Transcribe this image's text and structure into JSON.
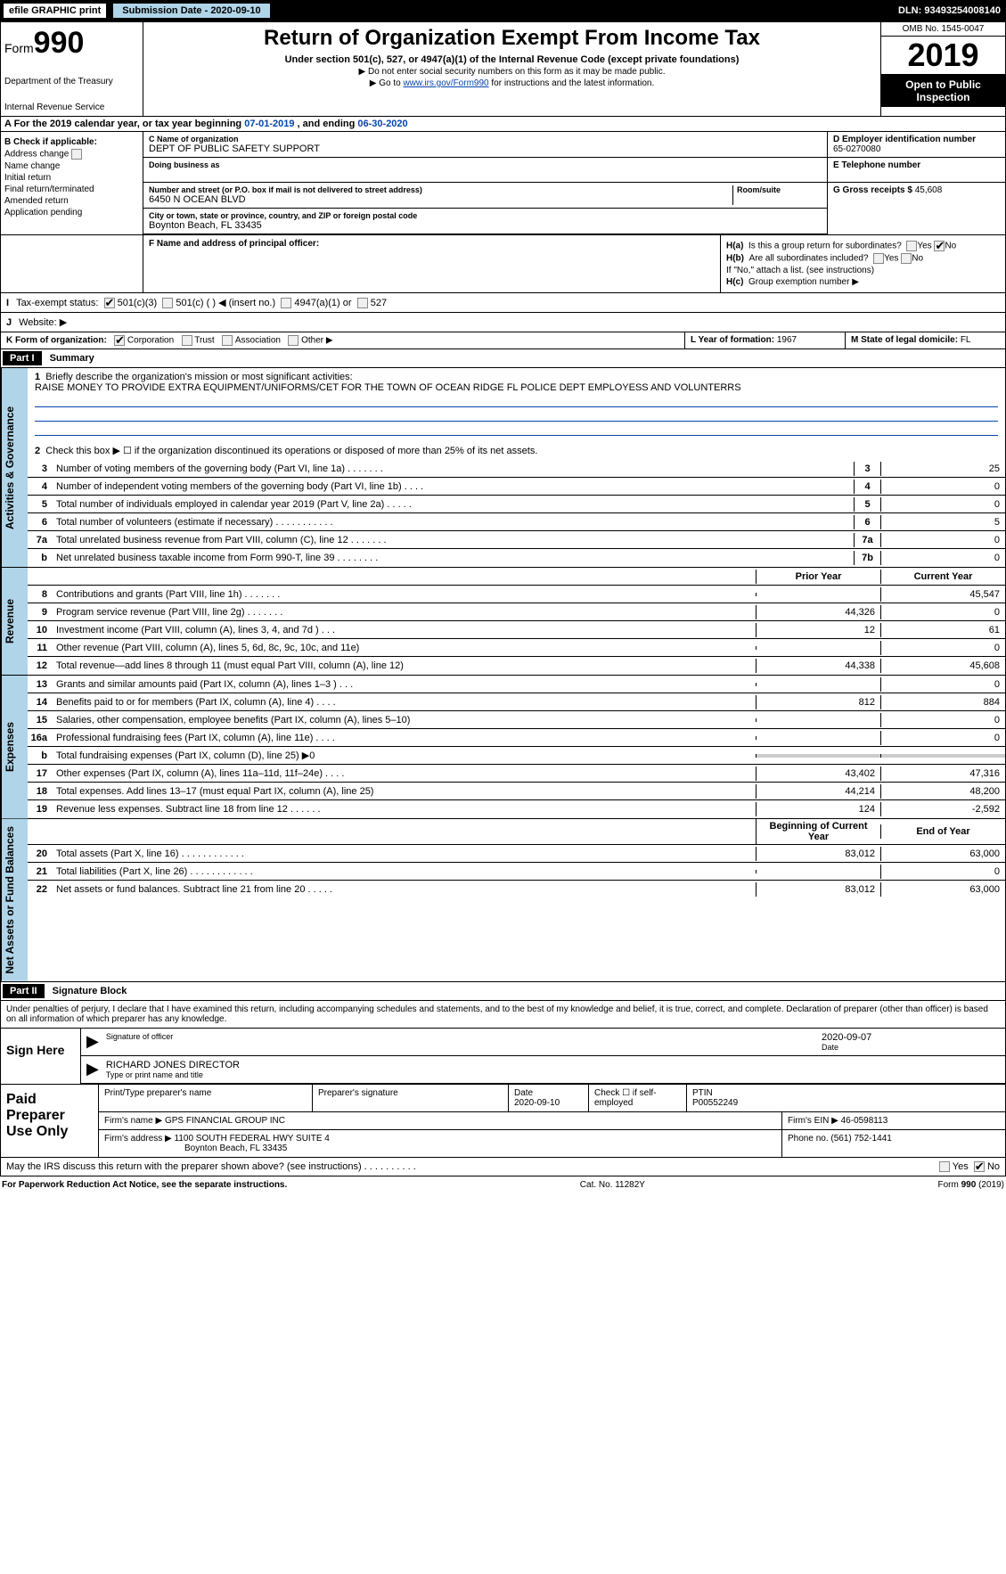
{
  "header": {
    "efile": "efile GRAPHIC print",
    "submission": "Submission Date - 2020-09-10",
    "dln": "DLN: 93493254008140"
  },
  "formtop": {
    "form_prefix": "Form",
    "form_num": "990",
    "dept": "Department of the Treasury",
    "irs": "Internal Revenue Service",
    "title": "Return of Organization Exempt From Income Tax",
    "sub1": "Under section 501(c), 527, or 4947(a)(1) of the Internal Revenue Code (except private foundations)",
    "sub2": "▶ Do not enter social security numbers on this form as it may be made public.",
    "sub3_a": "▶ Go to ",
    "sub3_link": "www.irs.gov/Form990",
    "sub3_b": " for instructions and the latest information.",
    "omb": "OMB No. 1545-0047",
    "year": "2019",
    "open": "Open to Public Inspection"
  },
  "row_a": {
    "text_a": "A   For the 2019 calendar year, or tax year beginning ",
    "begin": "07-01-2019",
    "text_b": "       , and ending ",
    "end": "06-30-2020"
  },
  "sec_b": {
    "label": "B Check if applicable:",
    "items": [
      "Address change",
      "Name change",
      "Initial return",
      "Final return/terminated",
      "Amended return",
      "Application pending"
    ]
  },
  "sec_c": {
    "name_lbl": "C Name of organization",
    "name": "DEPT OF PUBLIC SAFETY SUPPORT",
    "dba_lbl": "Doing business as",
    "addr_lbl": "Number and street (or P.O. box if mail is not delivered to street address)",
    "room_lbl": "Room/suite",
    "addr": "6450 N OCEAN BLVD",
    "city_lbl": "City or town, state or province, country, and ZIP or foreign postal code",
    "city": "Boynton Beach, FL  33435",
    "f_lbl": "F Name and address of principal officer:"
  },
  "sec_d": {
    "ein_lbl": "D Employer identification number",
    "ein": "65-0270080",
    "tel_lbl": "E Telephone number",
    "g_lbl": "G Gross receipts $ ",
    "g_val": "45,608"
  },
  "h": {
    "ha_lbl": "H(a)",
    "ha_txt": "Is this a group return for subordinates?",
    "hb_lbl": "H(b)",
    "hb_txt": "Are all subordinates included?",
    "hb_note": "If \"No,\" attach a list. (see instructions)",
    "hc_lbl": "H(c)",
    "hc_txt": "Group exemption number ▶",
    "yes": "Yes",
    "no": "No"
  },
  "row_i": {
    "lbl": "I",
    "txt": "Tax-exempt status:",
    "opts": [
      "501(c)(3)",
      "501(c) (  ) ◀ (insert no.)",
      "4947(a)(1) or",
      "527"
    ]
  },
  "row_j": {
    "lbl": "J",
    "txt": "Website: ▶"
  },
  "row_k": {
    "lbl": "K Form of organization:",
    "opts": [
      "Corporation",
      "Trust",
      "Association",
      "Other ▶"
    ]
  },
  "lm": {
    "l_lbl": "L Year of formation: ",
    "l_val": "1967",
    "m_lbl": "M State of legal domicile: ",
    "m_val": "FL"
  },
  "part1": {
    "hdr": "Part I",
    "ttl": "Summary"
  },
  "summary": {
    "q1": "Briefly describe the organization's mission or most significant activities:",
    "mission": "RAISE MONEY TO PROVIDE EXTRA EQUIPMENT/UNIFORMS/CET FOR THE TOWN OF OCEAN RIDGE FL POLICE DEPT EMPLOYESS AND VOLUNTERRS",
    "q2": "Check this box ▶ ☐  if the organization discontinued its operations or disposed of more than 25% of its net assets.",
    "lines_ag": [
      {
        "n": "3",
        "d": "Number of voting members of the governing body (Part VI, line 1a)  .     .     .     .     .     .     .",
        "box": "3",
        "v": "25"
      },
      {
        "n": "4",
        "d": "Number of independent voting members of the governing body (Part VI, line 1b)  .     .     .     .",
        "box": "4",
        "v": "0"
      },
      {
        "n": "5",
        "d": "Total number of individuals employed in calendar year 2019 (Part V, line 2a)  .     .     .     .     .",
        "box": "5",
        "v": "0"
      },
      {
        "n": "6",
        "d": "Total number of volunteers (estimate if necessary)    .     .     .     .     .     .     .     .     .     .     .",
        "box": "6",
        "v": "5"
      },
      {
        "n": "7a",
        "d": "Total unrelated business revenue from Part VIII, column (C), line 12  .     .     .     .     .     .     .",
        "box": "7a",
        "v": "0"
      },
      {
        "n": "b",
        "d": "Net unrelated business taxable income from Form 990-T, line 39   .     .     .     .     .     .     .     .",
        "box": "7b",
        "v": "0"
      }
    ],
    "prior_hdr": "Prior Year",
    "curr_hdr": "Current Year",
    "rev": [
      {
        "n": "8",
        "d": "Contributions and grants (Part VIII, line 1h)   .     .     .     .     .     .     .",
        "p": "",
        "c": "45,547"
      },
      {
        "n": "9",
        "d": "Program service revenue (Part VIII, line 2g)   .     .     .     .     .     .     .",
        "p": "44,326",
        "c": "0"
      },
      {
        "n": "10",
        "d": "Investment income (Part VIII, column (A), lines 3, 4, and 7d )   .     .     .",
        "p": "12",
        "c": "61"
      },
      {
        "n": "11",
        "d": "Other revenue (Part VIII, column (A), lines 5, 6d, 8c, 9c, 10c, and 11e)",
        "p": "",
        "c": "0"
      },
      {
        "n": "12",
        "d": "Total revenue—add lines 8 through 11 (must equal Part VIII, column (A), line 12)",
        "p": "44,338",
        "c": "45,608"
      }
    ],
    "exp": [
      {
        "n": "13",
        "d": "Grants and similar amounts paid (Part IX, column (A), lines 1–3 )  .     .     .",
        "p": "",
        "c": "0"
      },
      {
        "n": "14",
        "d": "Benefits paid to or for members (Part IX, column (A), line 4)  .     .     .     .",
        "p": "812",
        "c": "884"
      },
      {
        "n": "15",
        "d": "Salaries, other compensation, employee benefits (Part IX, column (A), lines 5–10)",
        "p": "",
        "c": "0"
      },
      {
        "n": "16a",
        "d": "Professional fundraising fees (Part IX, column (A), line 11e)   .     .     .     .",
        "p": "",
        "c": "0"
      },
      {
        "n": "b",
        "d": "Total fundraising expenses (Part IX, column (D), line 25) ▶0",
        "p": "shaded",
        "c": "shaded"
      },
      {
        "n": "17",
        "d": "Other expenses (Part IX, column (A), lines 11a–11d, 11f–24e)  .     .     .     .",
        "p": "43,402",
        "c": "47,316"
      },
      {
        "n": "18",
        "d": "Total expenses. Add lines 13–17 (must equal Part IX, column (A), line 25)",
        "p": "44,214",
        "c": "48,200"
      },
      {
        "n": "19",
        "d": "Revenue less expenses. Subtract line 18 from line 12  .     .     .     .     .     .",
        "p": "124",
        "c": "-2,592"
      }
    ],
    "boy_hdr": "Beginning of Current Year",
    "eoy_hdr": "End of Year",
    "net": [
      {
        "n": "20",
        "d": "Total assets (Part X, line 16)  .     .     .     .     .     .     .     .     .     .     .     .",
        "p": "83,012",
        "c": "63,000"
      },
      {
        "n": "21",
        "d": "Total liabilities (Part X, line 26)  .     .     .     .     .     .     .     .     .     .     .     .",
        "p": "",
        "c": "0"
      },
      {
        "n": "22",
        "d": "Net assets or fund balances. Subtract line 21 from line 20  .     .     .     .     .",
        "p": "83,012",
        "c": "63,000"
      }
    ]
  },
  "part2": {
    "hdr": "Part II",
    "ttl": "Signature Block"
  },
  "sig": {
    "penalty": "Under penalties of perjury, I declare that I have examined this return, including accompanying schedules and statements, and to the best of my knowledge and belief, it is true, correct, and complete. Declaration of preparer (other than officer) is based on all information of which preparer has any knowledge.",
    "here": "Sign Here",
    "sig_lbl": "Signature of officer",
    "date_lbl": "Date",
    "date": "2020-09-07",
    "name": "RICHARD JONES  DIRECTOR",
    "name_lbl": "Type or print name and title"
  },
  "prep": {
    "lbl": "Paid Preparer Use Only",
    "h1": "Print/Type preparer's name",
    "h2": "Preparer's signature",
    "h3": "Date",
    "h3v": "2020-09-10",
    "h4a": "Check ☐ if self-employed",
    "h5": "PTIN",
    "h5v": "P00552249",
    "firm_lbl": "Firm's name     ▶",
    "firm": "GPS FINANCIAL GROUP INC",
    "ein_lbl": "Firm's EIN ▶",
    "ein": "46-0598113",
    "addr_lbl": "Firm's address ▶",
    "addr1": "1100 SOUTH FEDERAL HWY SUITE 4",
    "addr2": "Boynton Beach, FL  33435",
    "phone_lbl": "Phone no. ",
    "phone": "(561) 752-1441"
  },
  "discuss": {
    "txt": "May the IRS discuss this return with the preparer shown above? (see instructions)    .      .      .      .      .      .      .      .      .      .",
    "yes": "Yes",
    "no": "No"
  },
  "foot": {
    "left": "For Paperwork Reduction Act Notice, see the separate instructions.",
    "mid": "Cat. No. 11282Y",
    "right_a": "Form ",
    "right_b": "990",
    "right_c": " (2019)"
  },
  "vtabs": {
    "ag": "Activities & Governance",
    "rev": "Revenue",
    "exp": "Expenses",
    "net": "Net Assets or Fund Balances"
  }
}
